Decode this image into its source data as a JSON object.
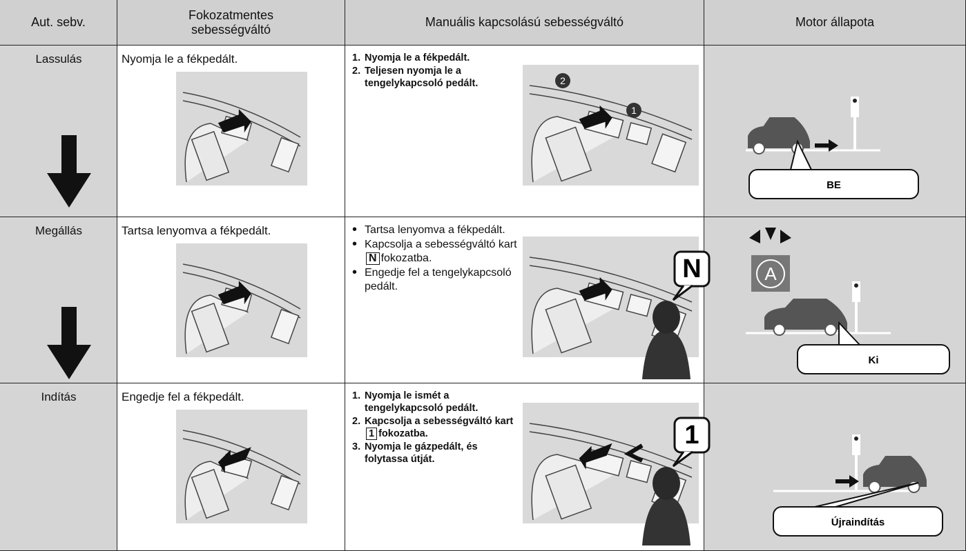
{
  "table": {
    "header": [
      "Aut. sebv.",
      "Fokozatmentes sebességváltó",
      "Manuális kapcsolású sebességváltó",
      "Motor állapota"
    ],
    "rows": [
      {
        "speed": "Lassulás",
        "cvt": "Nyomja le a fékpedált.",
        "manual": [
          {
            "marker": "1.",
            "text": "Nyomja le a fékpedált."
          },
          {
            "marker": "2.",
            "text": "Teljesen nyomja le a tengelykapcsoló pedált."
          }
        ],
        "badges": [
          "2",
          "1"
        ],
        "engine": "BE"
      },
      {
        "speed": "Megállás",
        "cvt": "Tartsa lenyomva a fékpedált.",
        "manual": [
          {
            "text": "Tartsa lenyomva a fékpedált."
          },
          {
            "text": "Kapcsolja a sebességváltó kart",
            "key": "N",
            "after": "fokozatba."
          },
          {
            "text": "Engedje fel a tengelykapcsoló pedált."
          }
        ],
        "gear": "N",
        "engine": "Ki"
      },
      {
        "speed": "Indítás",
        "cvt": "Engedje fel a fékpedált.",
        "manual": [
          {
            "marker": "1.",
            "text": "Nyomja le ismét a tengelykapcsoló pedált."
          },
          {
            "marker": "2.",
            "text": "Kapcsolja a sebességváltó kart",
            "key": "1",
            "after": "fokozatba."
          },
          {
            "marker": "3.",
            "text": "Nyomja le gázpedált, és folytassa útját."
          }
        ],
        "gear": "1",
        "engine": "Újraindítás"
      }
    ]
  }
}
